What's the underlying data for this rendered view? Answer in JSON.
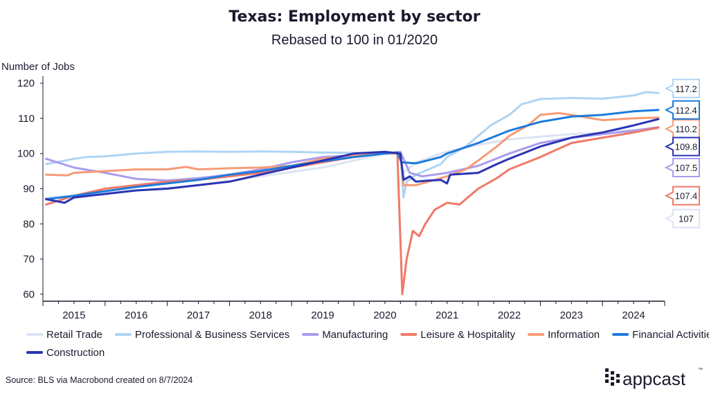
{
  "chart_data": {
    "type": "line",
    "title": "Texas: Employment by sector",
    "subtitle": "Rebased to 100 in 01/2020",
    "ylabel": "Number of Jobs",
    "xlabel": "",
    "ylim": [
      58,
      122
    ],
    "xlim": [
      2014.5,
      2024.5
    ],
    "yticks": [
      60,
      70,
      80,
      90,
      100,
      110,
      120
    ],
    "xtick_labels": [
      "2015",
      "2016",
      "2017",
      "2018",
      "2019",
      "2020",
      "2021",
      "2022",
      "2023",
      "2024"
    ],
    "grid": false,
    "legend_position": "bottom",
    "series": [
      {
        "name": "Retail Trade",
        "color": "#dde3f3",
        "end_label": "107",
        "label_y": 81.5,
        "x": [
          2014.55,
          2015.0,
          2015.5,
          2016.0,
          2016.5,
          2017.0,
          2017.5,
          2018.0,
          2018.5,
          2019.0,
          2019.5,
          2020.0,
          2020.2,
          2020.3,
          2020.5,
          2020.9,
          2021.0,
          2021.5,
          2022.0,
          2022.5,
          2023.0,
          2023.5,
          2024.0,
          2024.4
        ],
        "y": [
          87.5,
          88,
          88.7,
          89.5,
          90.3,
          91,
          92.1,
          93.5,
          94.8,
          96,
          98,
          100,
          100.3,
          94.5,
          97.5,
          100,
          100.5,
          102.5,
          104,
          104.8,
          105.5,
          106,
          106.8,
          107
        ]
      },
      {
        "name": "Professional & Business Services",
        "color": "#aed4f4",
        "end_label": "117.2",
        "label_y": 118.5,
        "x": [
          2014.55,
          2014.8,
          2015.0,
          2015.2,
          2015.5,
          2016.0,
          2016.5,
          2017.0,
          2017.5,
          2018.0,
          2018.5,
          2019.0,
          2019.5,
          2020.0,
          2020.25,
          2020.3,
          2020.35,
          2020.5,
          2020.9,
          2021.0,
          2021.3,
          2021.5,
          2021.7,
          2022.0,
          2022.2,
          2022.5,
          2023.0,
          2023.5,
          2024.0,
          2024.2,
          2024.4
        ],
        "y": [
          97,
          97.8,
          98.5,
          99,
          99.2,
          100,
          100.5,
          100.6,
          100.5,
          100.6,
          100.5,
          100.3,
          100.2,
          100.3,
          100.2,
          87.5,
          92,
          94,
          97,
          99,
          102,
          105,
          108,
          111,
          114,
          115.5,
          115.8,
          115.6,
          116.5,
          117.5,
          117.2
        ]
      },
      {
        "name": "Manufacturing",
        "color": "#a99ced",
        "end_label": "107.5",
        "label_y": 96,
        "x": [
          2014.55,
          2015.0,
          2015.5,
          2016.0,
          2016.5,
          2017.0,
          2017.5,
          2018.0,
          2018.5,
          2019.0,
          2019.5,
          2020.0,
          2020.25,
          2020.4,
          2020.6,
          2021.0,
          2021.5,
          2022.0,
          2022.5,
          2023.0,
          2023.5,
          2024.0,
          2024.4
        ],
        "y": [
          98.5,
          96,
          94.5,
          92.8,
          92.3,
          93,
          94,
          95.5,
          97.5,
          99,
          99.5,
          100,
          100.5,
          94.5,
          93.5,
          94.5,
          96.5,
          100,
          103,
          104.5,
          105.5,
          106.5,
          107.5
        ]
      },
      {
        "name": "Leisure & Hospitality",
        "color": "#f27866",
        "end_label": "107.4",
        "label_y": 88,
        "x": [
          2014.55,
          2015.0,
          2015.5,
          2016.0,
          2016.5,
          2017.0,
          2017.5,
          2018.0,
          2018.5,
          2019.0,
          2019.5,
          2020.0,
          2020.2,
          2020.28,
          2020.35,
          2020.45,
          2020.55,
          2020.65,
          2020.8,
          2021.0,
          2021.2,
          2021.5,
          2021.8,
          2022.0,
          2022.5,
          2023.0,
          2023.5,
          2024.0,
          2024.4
        ],
        "y": [
          85.5,
          88,
          90,
          91,
          92,
          92.5,
          93.5,
          94.5,
          96,
          97.5,
          99,
          100,
          100.2,
          60,
          70,
          78,
          76.5,
          80,
          84,
          86,
          85.5,
          90,
          93,
          95.5,
          99,
          103,
          104.5,
          106,
          107.4
        ]
      },
      {
        "name": "Information",
        "color": "#f79b76",
        "end_label": "110.2",
        "label_y": 107,
        "x": [
          2014.55,
          2014.9,
          2015.0,
          2015.5,
          2016.0,
          2016.5,
          2016.8,
          2017.0,
          2017.5,
          2018.0,
          2018.5,
          2019.0,
          2019.5,
          2020.0,
          2020.25,
          2020.3,
          2020.5,
          2020.8,
          2021.0,
          2021.3,
          2021.5,
          2021.8,
          2022.0,
          2022.3,
          2022.5,
          2022.8,
          2023.0,
          2023.5,
          2024.0,
          2024.4
        ],
        "y": [
          94,
          93.8,
          94.5,
          95,
          95.5,
          95.5,
          96.2,
          95.5,
          95.8,
          96,
          96.5,
          98.5,
          99.5,
          100,
          100,
          91,
          91,
          92.5,
          93.5,
          95.5,
          98,
          102,
          105,
          108,
          111,
          111.5,
          111,
          109.5,
          110,
          110.2
        ]
      },
      {
        "name": "Financial Activities",
        "color": "#1c7bdc",
        "end_label": "112.4",
        "label_y": 112.4,
        "x": [
          2014.55,
          2015.0,
          2015.5,
          2016.0,
          2016.5,
          2017.0,
          2017.5,
          2018.0,
          2018.5,
          2019.0,
          2019.5,
          2020.0,
          2020.2,
          2020.27,
          2020.5,
          2020.9,
          2021.0,
          2021.5,
          2022.0,
          2022.5,
          2023.0,
          2023.5,
          2024.0,
          2024.4
        ],
        "y": [
          87,
          88,
          89.3,
          90.5,
          91.5,
          92.5,
          94,
          95,
          96.5,
          97.8,
          99,
          100,
          100.3,
          97.5,
          97.2,
          99,
          100,
          103,
          106.5,
          109,
          110.5,
          111,
          112,
          112.4
        ]
      },
      {
        "name": "Construction",
        "color": "#2a34b4",
        "end_label": "109.8",
        "label_y": 102,
        "x": [
          2014.55,
          2014.85,
          2015.0,
          2015.5,
          2016.0,
          2016.5,
          2017.0,
          2017.5,
          2018.0,
          2018.5,
          2019.0,
          2019.5,
          2020.0,
          2020.25,
          2020.3,
          2020.4,
          2020.5,
          2020.7,
          2020.9,
          2021.0,
          2021.05,
          2021.5,
          2021.8,
          2022.0,
          2022.5,
          2023.0,
          2023.5,
          2024.0,
          2024.4
        ],
        "y": [
          87,
          86,
          87.5,
          88.5,
          89.5,
          90,
          91,
          92,
          94,
          96,
          98,
          100,
          100.5,
          100,
          92.5,
          93.5,
          92,
          92.3,
          92.5,
          91.5,
          94,
          94.5,
          97,
          98.5,
          102,
          104.5,
          106,
          108,
          109.8
        ]
      }
    ]
  },
  "source": "Source: BLS via Macrobond created on 8/7/2024",
  "logo": {
    "text": "appcast",
    "tm": "™"
  }
}
